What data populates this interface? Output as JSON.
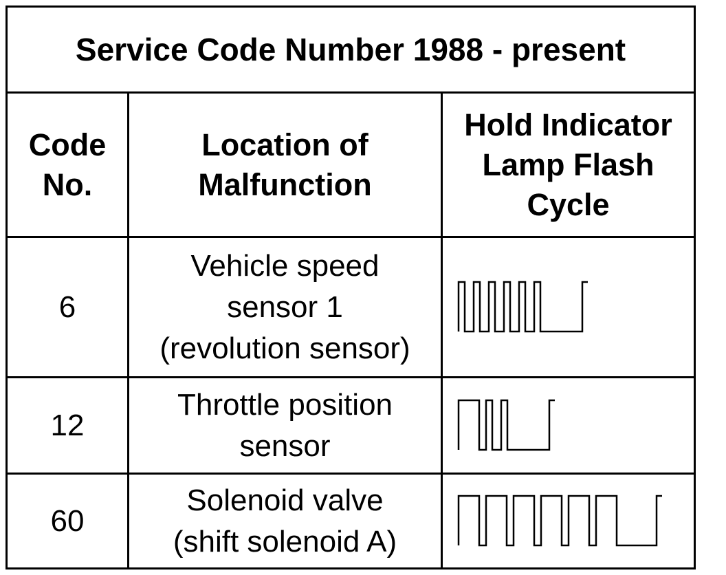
{
  "table": {
    "title": "Service Code Number 1988 - present",
    "headers": {
      "code": [
        "Code",
        "No."
      ],
      "location": [
        "Location of",
        "Malfunction"
      ],
      "flash": [
        "Hold Indicator",
        "Lamp Flash",
        "Cycle"
      ]
    },
    "rows": [
      {
        "code": "6",
        "location": [
          "Vehicle speed",
          "sensor 1",
          "(revolution sensor)"
        ],
        "long_pulses": 0,
        "short_pulses": 6
      },
      {
        "code": "12",
        "location": [
          "Throttle position",
          "sensor"
        ],
        "long_pulses": 1,
        "short_pulses": 2
      },
      {
        "code": "60",
        "location": [
          "Solenoid valve",
          "(shift solenoid A)"
        ],
        "long_pulses": 6,
        "short_pulses": 0
      }
    ]
  }
}
